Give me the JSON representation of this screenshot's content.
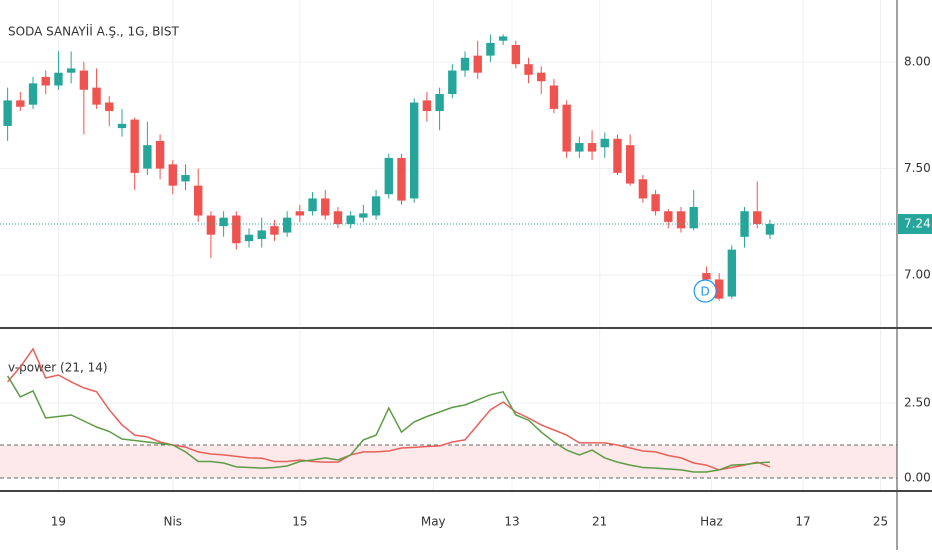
{
  "chart_data": [
    {
      "type": "candlestick",
      "title": "SODA SANAYİİ A.Ş., 1G, BIST",
      "open": [
        7.7,
        7.82,
        7.8,
        7.93,
        7.89,
        7.95,
        7.96,
        7.88,
        7.81,
        7.69,
        7.73,
        7.5,
        7.63,
        7.52,
        7.44,
        7.42,
        7.28,
        7.23,
        7.28,
        7.16,
        7.17,
        7.23,
        7.2,
        7.3,
        7.3,
        7.36,
        7.3,
        7.24,
        7.27,
        7.28,
        7.38,
        7.55,
        7.36,
        7.82,
        7.77,
        7.85,
        7.96,
        8.03,
        8.03,
        8.1,
        8.08,
        7.99,
        7.95,
        7.89,
        7.8,
        7.58,
        7.62,
        7.6,
        7.64,
        7.61,
        7.45,
        7.38,
        7.3,
        7.3,
        7.22,
        7.01,
        6.98,
        6.9,
        7.18,
        7.3,
        7.19
      ],
      "high": [
        7.88,
        7.86,
        7.93,
        7.96,
        8.05,
        8.05,
        8.0,
        7.97,
        7.84,
        7.78,
        7.74,
        7.72,
        7.66,
        7.54,
        7.52,
        7.5,
        7.3,
        7.3,
        7.3,
        7.22,
        7.27,
        7.26,
        7.3,
        7.33,
        7.39,
        7.4,
        7.32,
        7.3,
        7.33,
        7.4,
        7.57,
        7.57,
        7.83,
        7.86,
        7.88,
        7.99,
        8.05,
        8.1,
        8.13,
        8.13,
        8.1,
        8.02,
        7.98,
        7.92,
        7.82,
        7.65,
        7.68,
        7.67,
        7.66,
        7.66,
        7.47,
        7.4,
        7.31,
        7.32,
        7.4,
        7.04,
        7.01,
        7.14,
        7.32,
        7.44,
        7.26
      ],
      "low": [
        7.63,
        7.77,
        7.78,
        7.85,
        7.87,
        7.9,
        7.66,
        7.78,
        7.7,
        7.65,
        7.4,
        7.47,
        7.45,
        7.38,
        7.4,
        7.25,
        7.08,
        7.18,
        7.12,
        7.13,
        7.13,
        7.16,
        7.18,
        7.25,
        7.28,
        7.26,
        7.22,
        7.22,
        7.25,
        7.26,
        7.36,
        7.33,
        7.34,
        7.72,
        7.68,
        7.83,
        7.93,
        7.92,
        8.0,
        8.08,
        7.97,
        7.9,
        7.85,
        7.76,
        7.55,
        7.55,
        7.54,
        7.55,
        7.47,
        7.42,
        7.34,
        7.28,
        7.22,
        7.2,
        7.21,
        6.96,
        6.88,
        6.89,
        7.13,
        7.22,
        7.17
      ],
      "close": [
        7.82,
        7.79,
        7.9,
        7.89,
        7.95,
        7.97,
        7.87,
        7.8,
        7.77,
        7.71,
        7.48,
        7.61,
        7.5,
        7.42,
        7.47,
        7.28,
        7.19,
        7.27,
        7.15,
        7.19,
        7.21,
        7.19,
        7.27,
        7.28,
        7.36,
        7.28,
        7.24,
        7.28,
        7.29,
        7.37,
        7.55,
        7.35,
        7.81,
        7.77,
        7.85,
        7.96,
        8.02,
        7.95,
        8.09,
        8.12,
        7.99,
        7.94,
        7.91,
        7.78,
        7.58,
        7.62,
        7.58,
        7.64,
        7.48,
        7.43,
        7.36,
        7.3,
        7.25,
        7.22,
        7.32,
        6.98,
        6.89,
        7.12,
        7.3,
        7.24,
        7.24
      ],
      "up_color": "#26a69a",
      "down_color": "#ef5350",
      "xlim": [
        -0.6,
        70
      ],
      "ylim": [
        6.757,
        8.291
      ],
      "yticks": [
        {
          "value": 8,
          "label": "8.00"
        },
        {
          "value": 7.5,
          "label": "7.50"
        },
        {
          "value": 7,
          "label": "7.00"
        }
      ],
      "last_price": {
        "value": 7.24,
        "label": "7.24"
      },
      "annotations": [
        {
          "text": "D",
          "x": 54.9
        }
      ],
      "grid": true
    },
    {
      "type": "line",
      "title": "v-power (21, 14)",
      "series": [
        {
          "color": "#e8605a",
          "values": [
            3.2,
            3.7,
            4.3,
            3.33,
            3.43,
            3.2,
            3.0,
            2.87,
            2.27,
            1.77,
            1.43,
            1.37,
            1.2,
            1.1,
            1.03,
            0.87,
            0.8,
            0.77,
            0.72,
            0.67,
            0.66,
            0.55,
            0.55,
            0.6,
            0.55,
            0.53,
            0.53,
            0.77,
            0.87,
            0.87,
            0.9,
            1.0,
            1.02,
            1.05,
            1.07,
            1.2,
            1.27,
            1.77,
            2.27,
            2.53,
            2.2,
            2.0,
            1.77,
            1.6,
            1.43,
            1.17,
            1.17,
            1.17,
            1.1,
            1.0,
            0.9,
            0.87,
            0.75,
            0.67,
            0.5,
            0.43,
            0.27,
            0.35,
            0.43,
            0.53,
            0.37
          ]
        },
        {
          "color": "#5d9b46",
          "values": [
            3.4,
            2.7,
            2.9,
            2.0,
            2.05,
            2.1,
            1.9,
            1.7,
            1.55,
            1.3,
            1.25,
            1.2,
            1.15,
            1.1,
            0.87,
            0.55,
            0.55,
            0.5,
            0.37,
            0.35,
            0.33,
            0.35,
            0.4,
            0.55,
            0.6,
            0.67,
            0.6,
            0.77,
            1.27,
            1.43,
            2.33,
            1.53,
            1.87,
            2.05,
            2.2,
            2.35,
            2.43,
            2.6,
            2.77,
            2.87,
            2.1,
            1.93,
            1.53,
            1.2,
            0.93,
            0.77,
            0.93,
            0.67,
            0.53,
            0.43,
            0.35,
            0.33,
            0.3,
            0.27,
            0.2,
            0.2,
            0.27,
            0.43,
            0.45,
            0.5,
            0.53
          ]
        }
      ],
      "xlim": [
        -0.6,
        70
      ],
      "xticks": [
        {
          "value": 4,
          "label": "19"
        },
        {
          "value": 13,
          "label": "Nis"
        },
        {
          "value": 23,
          "label": "15"
        },
        {
          "value": 33.5,
          "label": "May"
        },
        {
          "value": 39.7,
          "label": "13"
        },
        {
          "value": 46.6,
          "label": "21"
        },
        {
          "value": 55.4,
          "label": "Haz"
        },
        {
          "value": 62.6,
          "label": "17"
        },
        {
          "value": 68.7,
          "label": "25"
        }
      ],
      "ylim": [
        -0.4,
        4.93
      ],
      "yticks": [
        {
          "value": 2.5,
          "label": "2.50"
        },
        {
          "value": 0,
          "label": "0.00"
        }
      ],
      "hlines": [
        0,
        1.1
      ],
      "band": [
        0,
        1.1
      ],
      "band_color": "#fde9e9",
      "grid": true
    }
  ]
}
